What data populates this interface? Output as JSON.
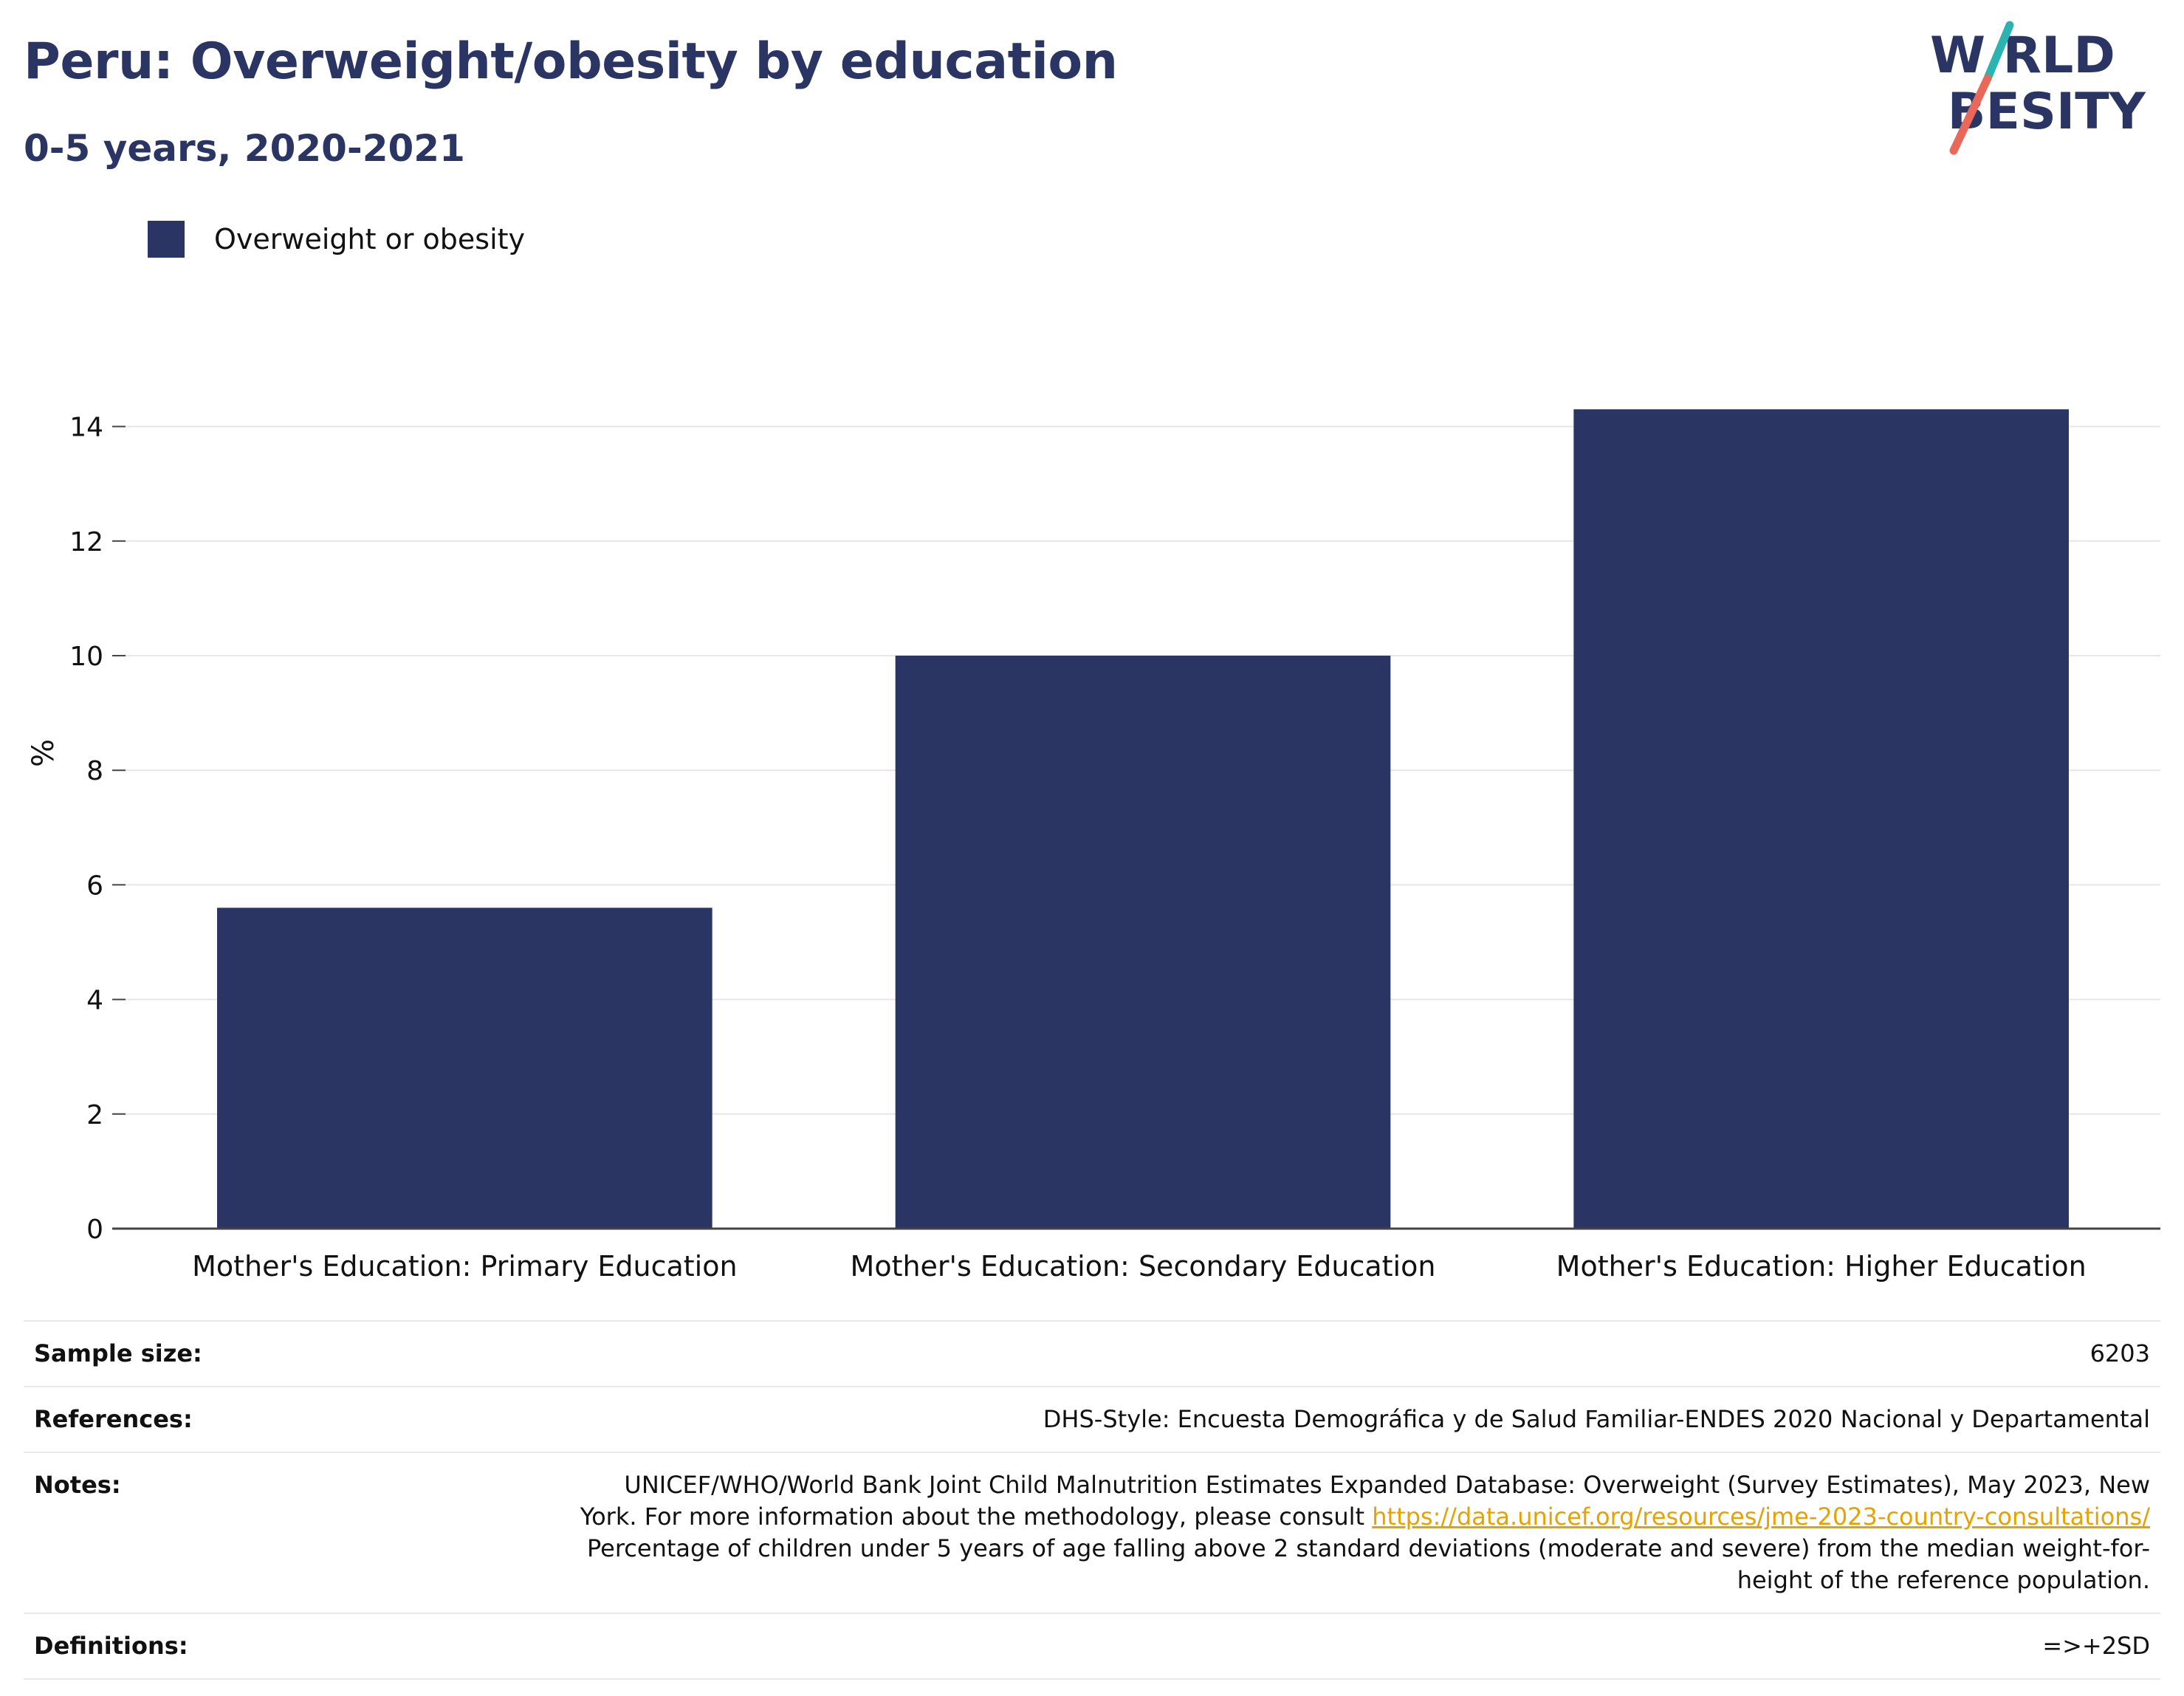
{
  "header": {
    "title": "Peru: Overweight/obesity by education",
    "subtitle": "0-5 years, 2020-2021"
  },
  "logo": {
    "line1": "W RLD",
    "line2": " BESITY",
    "colors": {
      "text": "#2a3563",
      "slash_top": "#2ab3b1",
      "slash_bottom": "#e8685a"
    }
  },
  "legend": {
    "items": [
      {
        "label": "Overweight or obesity",
        "color": "#2a3563"
      }
    ]
  },
  "chart_data": {
    "type": "bar",
    "categories": [
      "Mother's Education: Primary Education",
      "Mother's Education: Secondary Education",
      "Mother's Education: Higher Education"
    ],
    "series": [
      {
        "name": "Overweight or obesity",
        "values": [
          5.6,
          10.0,
          14.3
        ],
        "color": "#2a3563"
      }
    ],
    "ylabel": "%",
    "ylim": [
      0,
      15
    ],
    "yticks": [
      0,
      2,
      4,
      6,
      8,
      10,
      12,
      14
    ],
    "grid": true,
    "legend_position": "top-left"
  },
  "info": {
    "sample_size_label": "Sample size:",
    "sample_size_value": "6203",
    "references_label": "References:",
    "references_value": "DHS-Style: Encuesta Demográfica y de Salud Familiar-ENDES 2020 Nacional y Departamental",
    "notes_label": "Notes:",
    "notes_line1": "UNICEF/WHO/World Bank Joint Child Malnutrition Estimates Expanded Database: Overweight (Survey Estimates), May 2023, New",
    "notes_line2": "York. For more information about the methodology, please consult",
    "notes_link": "https://data.unicef.org/resources/jme-2023-country-consultations/",
    "notes_line3": "Percentage of children under 5 years of age falling above 2 standard deviations (moderate and severe) from the median weight-for-",
    "notes_line4": "height of the reference population.",
    "definitions_label": "Definitions:",
    "definitions_value": "=>+2SD"
  }
}
